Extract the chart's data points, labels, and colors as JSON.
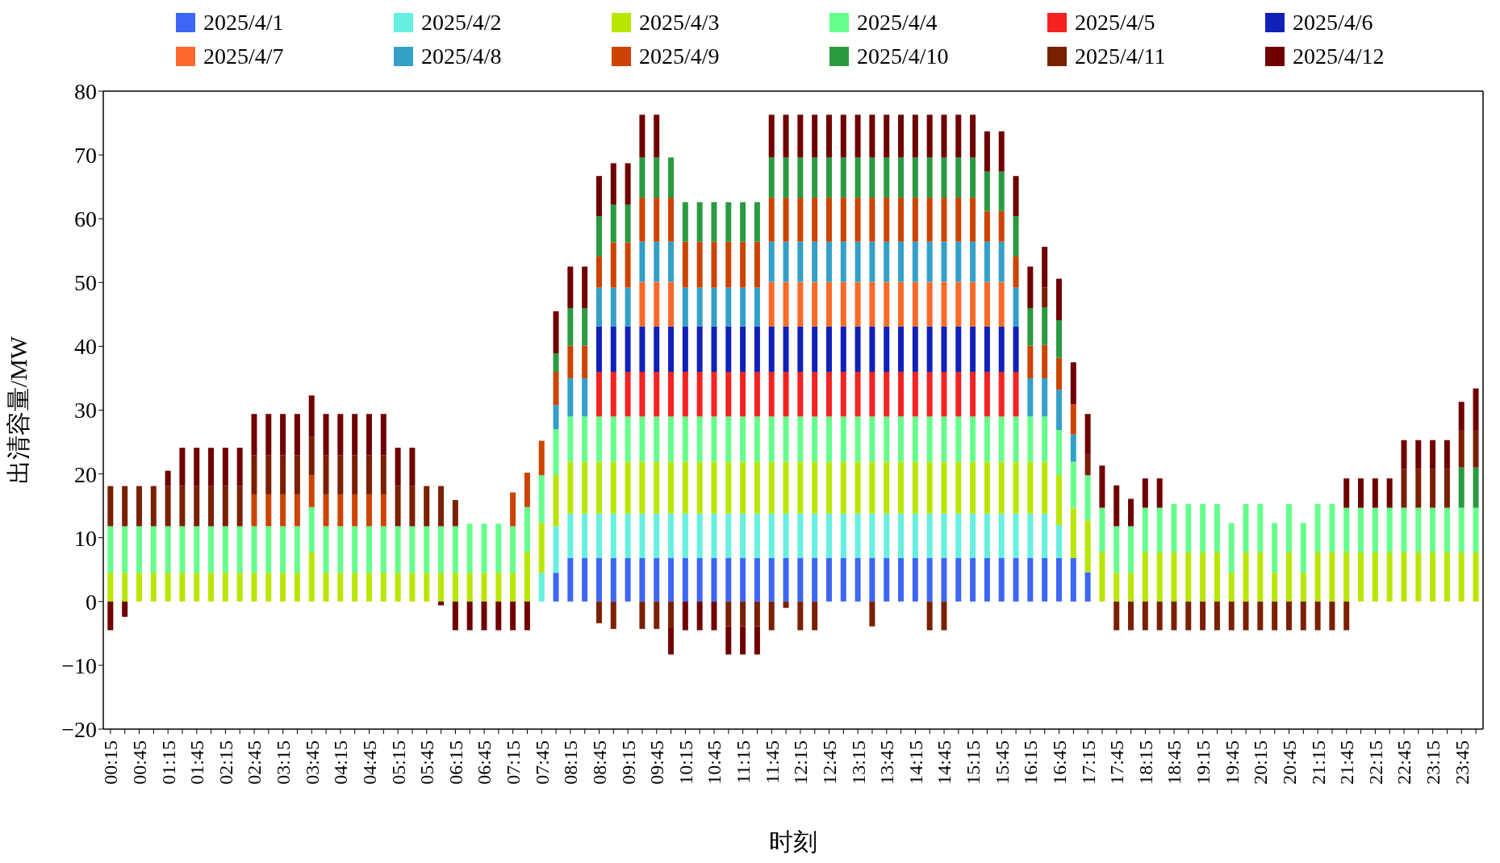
{
  "chart_data": {
    "type": "bar",
    "stacked": true,
    "xlabel": "时刻",
    "ylabel": "出清容量/MW",
    "legend": "top",
    "ylim": [
      -20,
      80
    ],
    "yticks": [
      {
        "value": -20,
        "label": "−20"
      },
      {
        "value": -10,
        "label": "−10"
      },
      0,
      10,
      20,
      30,
      40,
      50,
      60,
      70,
      80
    ],
    "categories": [
      "00:15",
      null,
      "00:45",
      null,
      "01:15",
      null,
      "01:45",
      null,
      "02:15",
      null,
      "02:45",
      null,
      "03:15",
      null,
      "03:45",
      null,
      "04:15",
      null,
      "04:45",
      null,
      "05:15",
      null,
      "05:45",
      null,
      "06:15",
      null,
      "06:45",
      null,
      "07:15",
      null,
      "07:45",
      null,
      "08:15",
      null,
      "08:45",
      null,
      "09:15",
      null,
      "09:45",
      null,
      "10:15",
      null,
      "10:45",
      null,
      "11:15",
      null,
      "11:45",
      null,
      "12:15",
      null,
      "12:45",
      null,
      "13:15",
      null,
      "13:45",
      null,
      "14:15",
      null,
      "14:45",
      null,
      "15:15",
      null,
      "15:45",
      null,
      "16:15",
      null,
      "16:45",
      null,
      "17:15",
      null,
      "17:45",
      null,
      "18:15",
      null,
      "18:45",
      null,
      "19:15",
      null,
      "19:45",
      null,
      "20:15",
      null,
      "20:45",
      null,
      "21:15",
      null,
      "21:45",
      null,
      "22:15",
      null,
      "22:45",
      null,
      "23:15",
      null,
      "23:45",
      null
    ],
    "series": [
      {
        "name": "2025/4/1",
        "color": "#3d66f5",
        "values": [
          0,
          0,
          0,
          0,
          0,
          0,
          0,
          0,
          0,
          0,
          0,
          0,
          0,
          0,
          0,
          0,
          0,
          0,
          0,
          0,
          0,
          0,
          0,
          0,
          0,
          0,
          0,
          0,
          0,
          0,
          0,
          4.5,
          6.8,
          6.8,
          6.8,
          6.8,
          6.8,
          6.8,
          6.8,
          6.8,
          6.8,
          6.8,
          6.8,
          6.8,
          6.8,
          6.8,
          6.8,
          6.8,
          6.8,
          6.8,
          6.8,
          6.8,
          6.8,
          6.8,
          6.8,
          6.8,
          6.8,
          6.8,
          6.8,
          6.8,
          6.8,
          6.8,
          6.8,
          6.8,
          6.8,
          6.8,
          6.8,
          6.8,
          4.6,
          0,
          0,
          0,
          0,
          0,
          0,
          0,
          0,
          0,
          0,
          0,
          0,
          0,
          0,
          0,
          0,
          0,
          0,
          0,
          0,
          0,
          0,
          0,
          0,
          0,
          0,
          0
        ]
      },
      {
        "name": "2025/4/2",
        "color": "#66f0e0",
        "values": [
          0,
          0,
          0,
          0,
          0,
          0,
          0,
          0,
          0,
          0,
          0,
          0,
          0,
          0,
          0,
          0,
          0,
          0,
          0,
          0,
          0,
          0,
          0,
          0,
          0,
          0,
          0,
          0,
          0,
          0,
          4.5,
          7.3,
          7,
          7,
          7,
          7,
          7,
          7,
          7,
          7,
          7,
          7,
          7,
          7,
          7,
          7,
          7,
          7,
          7,
          7,
          7,
          7,
          7,
          7,
          7,
          7,
          7,
          7,
          7,
          7,
          7,
          7,
          7,
          7,
          7,
          7,
          5.2,
          0,
          0,
          0,
          0,
          0,
          0,
          0,
          0,
          0,
          0,
          0,
          0,
          0,
          0,
          0,
          0,
          0,
          0,
          0,
          0,
          0,
          0,
          0,
          0,
          0,
          0,
          0,
          0,
          0
        ]
      },
      {
        "name": "2025/4/3",
        "color": "#b8e600",
        "values": [
          4.5,
          4.5,
          4.5,
          4.5,
          4.5,
          4.5,
          4.5,
          4.5,
          4.5,
          4.5,
          4.5,
          4.5,
          4.5,
          4.5,
          7.7,
          4.5,
          4.5,
          4.5,
          4.5,
          4.5,
          4.5,
          4.5,
          4.5,
          4.5,
          4.5,
          4.5,
          4.5,
          4.5,
          4.5,
          7.7,
          7.8,
          8.0,
          8.1,
          8.1,
          8.1,
          8.1,
          8.1,
          8.1,
          8.1,
          8.1,
          8.1,
          8.1,
          8.1,
          8.1,
          8.1,
          8.1,
          8.1,
          8.1,
          8.1,
          8.1,
          8.1,
          8.1,
          8.1,
          8.1,
          8.1,
          8.1,
          8.1,
          8.1,
          8.1,
          8.1,
          8.1,
          8.1,
          8.1,
          8.1,
          8.1,
          8.1,
          7.8,
          7.9,
          8.1,
          7.7,
          4.5,
          4.5,
          7.7,
          7.7,
          7.7,
          7.7,
          7.7,
          7.7,
          4.5,
          7.7,
          7.7,
          4.5,
          7.7,
          4.5,
          7.7,
          7.7,
          7.7,
          7.7,
          7.7,
          7.7,
          7.7,
          7.7,
          7.7,
          7.7,
          7.7,
          7.7
        ]
      },
      {
        "name": "2025/4/4",
        "color": "#66ff8c",
        "values": [
          7.3,
          7.3,
          7.3,
          7.3,
          7.3,
          7.3,
          7.3,
          7.3,
          7.3,
          7.3,
          7.3,
          7.3,
          7.3,
          7.3,
          7.1,
          7.3,
          7.3,
          7.3,
          7.3,
          7.3,
          7.3,
          7.3,
          7.3,
          7.3,
          7.3,
          7.7,
          7.7,
          7.7,
          7.3,
          7.1,
          7.5,
          7.2,
          7.1,
          7.1,
          7.1,
          7.1,
          7.1,
          7.1,
          7.1,
          7.1,
          7.1,
          7.1,
          7.1,
          7.1,
          7.1,
          7.1,
          7.1,
          7.1,
          7.1,
          7.1,
          7.1,
          7.1,
          7.1,
          7.1,
          7.1,
          7.1,
          7.1,
          7.1,
          7.1,
          7.1,
          7.1,
          7.1,
          7.1,
          7.1,
          7.1,
          7.1,
          7.1,
          7.2,
          7.1,
          7.0,
          7.3,
          7.3,
          7.0,
          7.0,
          7.6,
          7.6,
          7.6,
          7.6,
          7.8,
          7.6,
          7.6,
          7.8,
          7.6,
          7.8,
          7.6,
          7.6,
          7.0,
          7.0,
          7.0,
          7.0,
          7.0,
          7.0,
          7.0,
          7.0,
          7.0,
          7.0
        ]
      },
      {
        "name": "2025/4/5",
        "color": "#f52222",
        "values": [
          0,
          0,
          0,
          0,
          0,
          0,
          0,
          0,
          0,
          0,
          0,
          0,
          0,
          0,
          0,
          0,
          0,
          0,
          0,
          0,
          0,
          0,
          0,
          0,
          0,
          0,
          0,
          0,
          0,
          0,
          0,
          0,
          0,
          0,
          7,
          7,
          7,
          7,
          7,
          7,
          7,
          7,
          7,
          7,
          7,
          7,
          7,
          7,
          7,
          7,
          7,
          7,
          7,
          7,
          7,
          7,
          7,
          7,
          7,
          7,
          7,
          7,
          7,
          7,
          0,
          0,
          0,
          0,
          0,
          0,
          0,
          0,
          0,
          0,
          0,
          0,
          0,
          0,
          0,
          0,
          0,
          0,
          0,
          0,
          0,
          0,
          0,
          0,
          0,
          0,
          0,
          0,
          0,
          0,
          0,
          0
        ]
      },
      {
        "name": "2025/4/6",
        "color": "#1020b8",
        "values": [
          0,
          0,
          0,
          0,
          0,
          0,
          0,
          0,
          0,
          0,
          0,
          0,
          0,
          0,
          0,
          0,
          0,
          0,
          0,
          0,
          0,
          0,
          0,
          0,
          0,
          0,
          0,
          0,
          0,
          0,
          0,
          0,
          0,
          0,
          7.1,
          7.1,
          7.1,
          7.1,
          7.1,
          7.1,
          7.1,
          7.1,
          7.1,
          7.1,
          7.1,
          7.1,
          7.1,
          7.1,
          7.1,
          7.1,
          7.1,
          7.1,
          7.1,
          7.1,
          7.1,
          7.1,
          7.1,
          7.1,
          7.1,
          7.1,
          7.1,
          7.1,
          7.1,
          7.1,
          0,
          0,
          0,
          0,
          0,
          0,
          0,
          0,
          0,
          0,
          0,
          0,
          0,
          0,
          0,
          0,
          0,
          0,
          0,
          0,
          0,
          0,
          0,
          0,
          0,
          0,
          0,
          0,
          0,
          0,
          0,
          0
        ]
      },
      {
        "name": "2025/4/7",
        "color": "#ff6a2a",
        "values": [
          0,
          0,
          0,
          0,
          0,
          0,
          0,
          0,
          0,
          0,
          0,
          0,
          0,
          0,
          0,
          0,
          0,
          0,
          0,
          0,
          0,
          0,
          0,
          0,
          0,
          0,
          0,
          0,
          0,
          0,
          0,
          0,
          0,
          0,
          0,
          0,
          0,
          7,
          7,
          7,
          0,
          0,
          0,
          0,
          0,
          0,
          7,
          7,
          7,
          7,
          7,
          7,
          7,
          7,
          7,
          7,
          7,
          7,
          7,
          7,
          7,
          7,
          7,
          0,
          0,
          0,
          0,
          0,
          0,
          0,
          0,
          0,
          0,
          0,
          0,
          0,
          0,
          0,
          0,
          0,
          0,
          0,
          0,
          0,
          0,
          0,
          0,
          0,
          0,
          0,
          0,
          0,
          0,
          0,
          0,
          0
        ]
      },
      {
        "name": "2025/4/8",
        "color": "#33a0c8",
        "values": [
          0,
          0,
          0,
          0,
          0,
          0,
          0,
          0,
          0,
          0,
          0,
          0,
          0,
          0,
          0,
          0,
          0,
          0,
          0,
          0,
          0,
          0,
          0,
          0,
          0,
          0,
          0,
          0,
          0,
          0,
          0,
          3.8,
          6.0,
          6.0,
          6.1,
          6.1,
          6.1,
          6.3,
          6.3,
          6.3,
          6.1,
          6.1,
          6.1,
          6.1,
          6.1,
          6.1,
          6.3,
          6.3,
          6.3,
          6.3,
          6.3,
          6.3,
          6.3,
          6.3,
          6.3,
          6.3,
          6.3,
          6.3,
          6.3,
          6.3,
          6.3,
          6.3,
          6.3,
          6.1,
          6.0,
          6.0,
          6.3,
          4.3,
          0,
          0,
          0,
          0,
          0,
          0,
          0,
          0,
          0,
          0,
          0,
          0,
          0,
          0,
          0,
          0,
          0,
          0,
          0,
          0,
          0,
          0,
          0,
          0,
          0,
          0,
          0,
          0
        ]
      },
      {
        "name": "2025/4/9",
        "color": "#cc4400",
        "values": [
          0,
          0,
          0,
          0,
          0,
          0,
          0,
          0,
          0,
          0,
          5.0,
          5.0,
          5.0,
          5.0,
          5.0,
          5.0,
          5.0,
          5.0,
          5.0,
          5.0,
          0,
          0,
          0,
          0,
          0,
          0,
          0,
          0,
          5.3,
          5.4,
          5.4,
          5.2,
          5.1,
          5.1,
          4.9,
          7.1,
          7.1,
          6.9,
          6.9,
          6.9,
          7.2,
          7.2,
          7.2,
          7.2,
          7.2,
          7.2,
          6.9,
          6.9,
          6.9,
          6.9,
          6.9,
          6.9,
          6.9,
          6.9,
          6.9,
          6.9,
          6.9,
          6.9,
          6.9,
          6.9,
          6.9,
          4.8,
          4.8,
          4.9,
          5.1,
          5.2,
          5.0,
          4.7,
          0,
          0,
          0,
          0,
          0,
          0,
          0,
          0,
          0,
          0,
          0,
          0,
          0,
          0,
          0,
          0,
          0,
          0,
          0,
          0,
          0,
          0,
          0,
          0,
          0,
          0,
          0,
          0
        ]
      },
      {
        "name": "2025/4/10",
        "color": "#2a9a40",
        "values": [
          0,
          0,
          0,
          0,
          0,
          0,
          0,
          0,
          0,
          0,
          0,
          0,
          0,
          0,
          0,
          0,
          0,
          0,
          0,
          0,
          0,
          0,
          0,
          0,
          0,
          0,
          0,
          0,
          0,
          0,
          0,
          2.9,
          5.9,
          5.9,
          6.3,
          5.9,
          5.9,
          6.3,
          6.3,
          6.3,
          6.2,
          6.2,
          6.2,
          6.2,
          6.2,
          6.2,
          6.3,
          6.3,
          6.3,
          6.3,
          6.3,
          6.3,
          6.3,
          6.3,
          6.3,
          6.3,
          6.3,
          6.3,
          6.3,
          6.3,
          6.3,
          6.2,
          6.2,
          6.3,
          5.9,
          5.9,
          5.9,
          0,
          0,
          0,
          0,
          0,
          0,
          0,
          0,
          0,
          0,
          0,
          0,
          0,
          0,
          0,
          0,
          0,
          0,
          0,
          0,
          0,
          0,
          0,
          0,
          0,
          0,
          0,
          6.3,
          6.3
        ]
      },
      {
        "name": "2025/4/11",
        "color": "#7a2000",
        "values": [
          6.3,
          6.3,
          6.3,
          6.3,
          6.3,
          6.3,
          6.3,
          6.3,
          6.3,
          6.3,
          6.1,
          6.1,
          6.1,
          6.1,
          6.0,
          6.1,
          6.1,
          6.1,
          6.1,
          6.1,
          6.3,
          6.3,
          6.3,
          6.3,
          4.1,
          0,
          0,
          0,
          0,
          0,
          0,
          0,
          0,
          0,
          -3.4,
          -4.3,
          0,
          -4.3,
          -4.3,
          -4.2,
          0,
          0,
          0,
          -3.9,
          -3.9,
          -3.9,
          -4.5,
          -1.0,
          -4.5,
          -4.5,
          0,
          0,
          0,
          -3.9,
          0,
          0,
          0,
          -4.5,
          -4.5,
          0,
          0,
          0,
          0,
          0,
          0,
          3.1,
          0,
          0,
          3.2,
          0,
          -4.5,
          -4.5,
          -4.5,
          -4.5,
          -4.5,
          -4.5,
          -4.5,
          -4.5,
          -4.5,
          -4.5,
          -4.5,
          -4.5,
          -4.5,
          -4.5,
          -4.5,
          -4.5,
          -4.5,
          0,
          0,
          0,
          6.1,
          6.1,
          6.1,
          6.1,
          5.9,
          5.9
        ]
      },
      {
        "name": "2025/4/12",
        "color": "#700000",
        "values": [
          -4.5,
          -2.4,
          0,
          0,
          2.4,
          6.0,
          6.0,
          6.0,
          6.0,
          6.0,
          6.5,
          6.5,
          6.5,
          6.5,
          6.5,
          6.5,
          6.5,
          6.5,
          6.5,
          6.5,
          6.0,
          6.0,
          0,
          -0.6,
          -4.5,
          -4.5,
          -4.5,
          -4.5,
          -4.5,
          -4.5,
          0,
          6.6,
          6.5,
          6.5,
          6.3,
          6.5,
          6.5,
          6.7,
          6.7,
          -4.1,
          -4.5,
          -4.5,
          -4.5,
          -4.4,
          -4.4,
          -4.4,
          6.7,
          6.7,
          6.7,
          6.7,
          6.7,
          6.7,
          6.7,
          6.7,
          6.7,
          6.7,
          6.7,
          6.7,
          6.7,
          6.7,
          6.7,
          6.3,
          6.3,
          6.3,
          6.5,
          6.4,
          6.5,
          6.6,
          6.4,
          6.6,
          6.4,
          4.3,
          4.6,
          4.6,
          0,
          0,
          0,
          0,
          0,
          0,
          0,
          0,
          0,
          0,
          0,
          0,
          4.6,
          4.6,
          4.6,
          4.6,
          4.5,
          4.5,
          4.5,
          4.5,
          4.4,
          6.5
        ]
      }
    ]
  }
}
